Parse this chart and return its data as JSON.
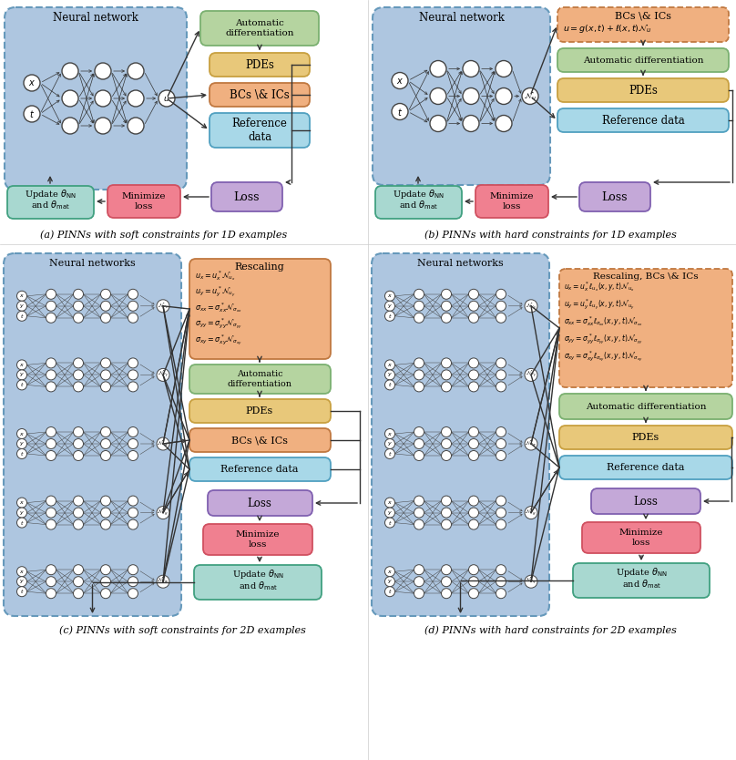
{
  "fig_width": 8.08,
  "fig_height": 8.34,
  "background": "#ffffff",
  "panel_bg": "#aec6e0",
  "autodiff_color": "#b5d4a0",
  "pde_color": "#e8c87a",
  "bc_soft_color": "#f0b080",
  "bc_hard_color": "#f0b080",
  "refdata_color": "#a8d8e8",
  "loss_color": "#c4a8d8",
  "minloss_color": "#f08090",
  "update_color": "#a8d8d0",
  "caption_a": "(a) PINNs with soft constraints for 1D examples",
  "caption_b": "(b) PINNs with hard constraints for 1D examples",
  "caption_c": "(c) PINNs with soft constraints for 2D examples",
  "caption_d": "(d) PINNs with hard constraints for 2D examples"
}
